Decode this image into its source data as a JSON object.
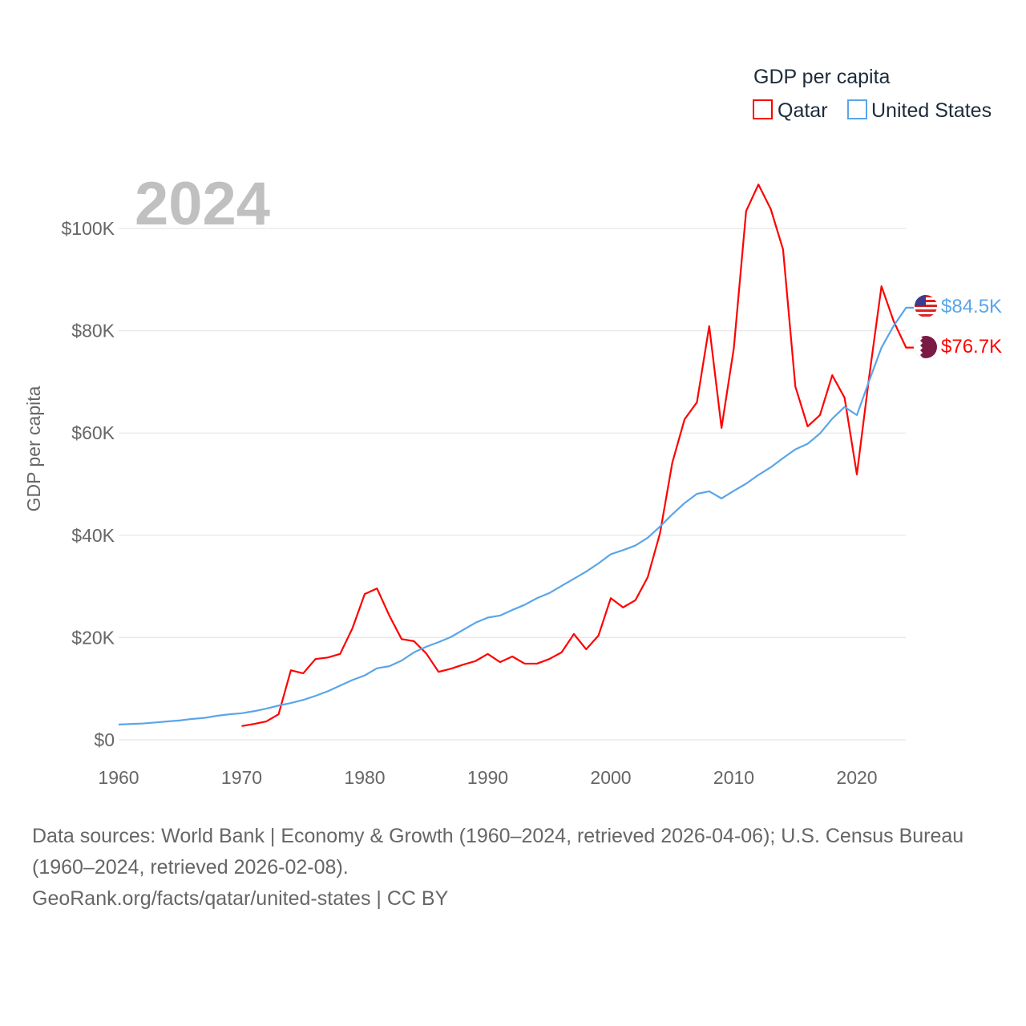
{
  "legend": {
    "title": "GDP per capita",
    "items": [
      {
        "name": "Qatar",
        "color": "#ff0000"
      },
      {
        "name": "United States",
        "color": "#5aa5ea"
      }
    ]
  },
  "year_label": "2024",
  "end_labels": {
    "us": "$84.5K",
    "qatar": "$76.7K"
  },
  "footer": {
    "line1": "Data sources: World Bank | Economy & Growth (1960–2024, retrieved 2026-04-06); U.S. Census Bureau (1960–2024, retrieved 2026-02-08).",
    "line2": "GeoRank.org/facts/qatar/united-states | CC BY"
  },
  "chart_data": {
    "type": "line",
    "title": "GDP per capita",
    "xlabel": "",
    "ylabel": "GDP per capita",
    "xlim": [
      1960,
      2024
    ],
    "ylim": [
      0,
      110
    ],
    "y_unit": "thousand USD",
    "xticks": [
      "1960",
      "1970",
      "1980",
      "1990",
      "2000",
      "2010",
      "2020"
    ],
    "yticks": [
      {
        "v": 0,
        "label": "$0"
      },
      {
        "v": 20,
        "label": "$20K"
      },
      {
        "v": 40,
        "label": "$40K"
      },
      {
        "v": 60,
        "label": "$60K"
      },
      {
        "v": 80,
        "label": "$80K"
      },
      {
        "v": 100,
        "label": "$100K"
      }
    ],
    "grid": true,
    "legend_position": "top-right",
    "series": [
      {
        "name": "Qatar",
        "color": "#ff0000",
        "start": 1970,
        "values": [
          2.7,
          3.1,
          3.6,
          5.0,
          13.6,
          13.0,
          15.8,
          16.1,
          16.8,
          21.8,
          28.5,
          29.6,
          24.3,
          19.7,
          19.3,
          16.9,
          13.3,
          13.9,
          14.7,
          15.4,
          16.8,
          15.2,
          16.3,
          14.9,
          14.9,
          15.8,
          17.1,
          20.7,
          17.7,
          20.4,
          27.7,
          25.9,
          27.3,
          31.8,
          40.4,
          54.2,
          62.7,
          66.0,
          80.9,
          61.0,
          76.6,
          103.4,
          108.6,
          103.8,
          95.9,
          69.1,
          61.3,
          63.5,
          71.3,
          66.9,
          51.9,
          71.0,
          88.7,
          81.8,
          76.7
        ]
      },
      {
        "name": "United States",
        "color": "#5aa5ea",
        "start": 1960,
        "values": [
          3.0,
          3.1,
          3.2,
          3.4,
          3.6,
          3.8,
          4.1,
          4.3,
          4.7,
          5.0,
          5.2,
          5.6,
          6.1,
          6.7,
          7.2,
          7.8,
          8.6,
          9.5,
          10.6,
          11.7,
          12.6,
          14.0,
          14.4,
          15.5,
          17.1,
          18.2,
          19.1,
          20.1,
          21.5,
          22.9,
          23.9,
          24.3,
          25.4,
          26.4,
          27.7,
          28.7,
          30.1,
          31.5,
          32.9,
          34.5,
          36.3,
          37.1,
          38.0,
          39.5,
          41.7,
          44.1,
          46.3,
          48.1,
          48.6,
          47.2,
          48.7,
          50.1,
          51.8,
          53.3,
          55.1,
          56.8,
          57.9,
          59.9,
          62.8,
          65.1,
          63.5,
          70.2,
          76.7,
          81.0,
          84.5
        ]
      }
    ]
  }
}
